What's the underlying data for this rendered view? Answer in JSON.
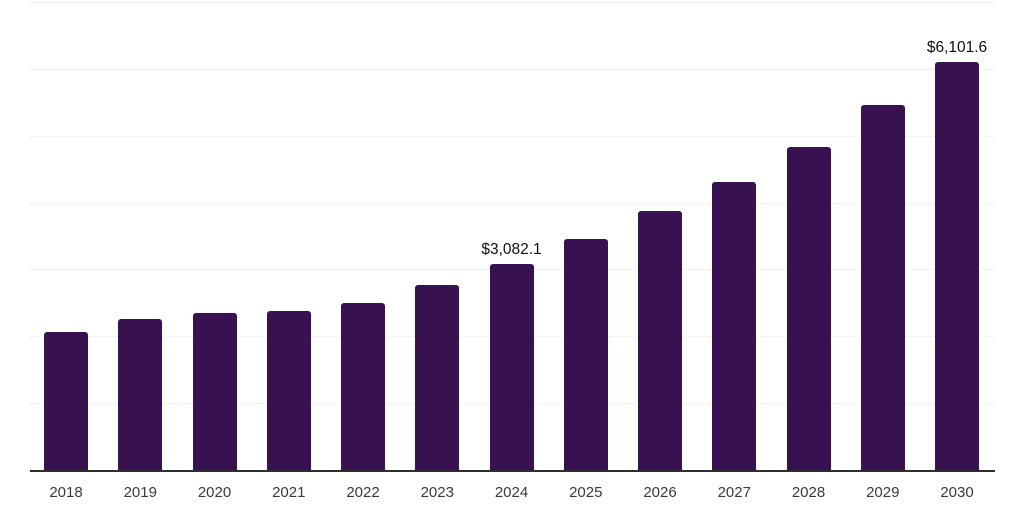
{
  "chart_data": {
    "type": "bar",
    "title": "",
    "xlabel": "",
    "ylabel": "",
    "categories": [
      "2018",
      "2019",
      "2020",
      "2021",
      "2022",
      "2023",
      "2024",
      "2025",
      "2026",
      "2027",
      "2028",
      "2029",
      "2030"
    ],
    "values": [
      2070,
      2255,
      2355,
      2385,
      2500,
      2770,
      3082.1,
      3450,
      3870,
      4305,
      4835,
      5460,
      6101.6
    ],
    "labeled_points": [
      {
        "category": "2024",
        "label": "$3,082.1"
      },
      {
        "category": "2030",
        "label": "$6,101.6"
      }
    ],
    "ylim": [
      0,
      7000
    ],
    "gridline_step": 1000,
    "grid": true,
    "legend": false,
    "bar_color": "#371150",
    "gridline_color": "#f2f2f2",
    "axis_line_color": "#2f2f2f",
    "data_label_color": "#111111",
    "tick_label_color": "#3a3a3a",
    "background_color": "#ffffff"
  }
}
